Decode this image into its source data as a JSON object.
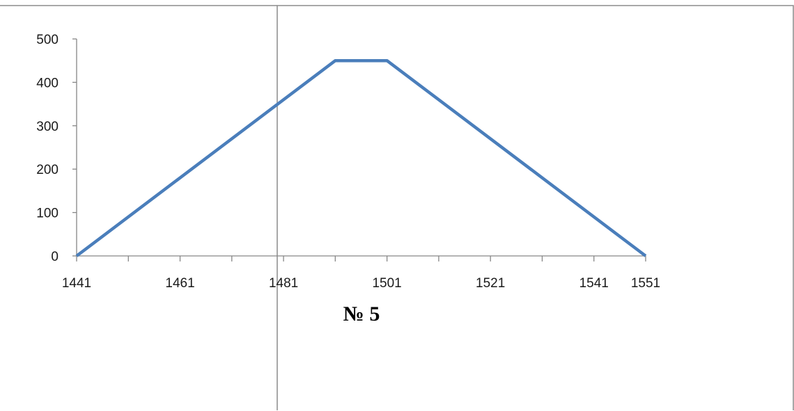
{
  "colors": {
    "series": "#4a7ebb",
    "axis": "#868686",
    "border": "#8c8c8c",
    "text": "#1a1a1a"
  },
  "chart_data": {
    "type": "line",
    "title": "№ 5",
    "xlabel": "",
    "ylabel": "",
    "xlim": [
      1441,
      1551
    ],
    "ylim": [
      0,
      500
    ],
    "x_ticks": [
      1441,
      1461,
      1481,
      1501,
      1521,
      1541,
      1551
    ],
    "x_minor_ticks": [
      1451,
      1471,
      1491,
      1511,
      1531
    ],
    "y_ticks": [
      0,
      100,
      200,
      300,
      400,
      500
    ],
    "grid": false,
    "legend": "none",
    "series": [
      {
        "x": [
          1441,
          1491,
          1501,
          1551
        ],
        "y": [
          0,
          450,
          450,
          0
        ]
      }
    ]
  }
}
